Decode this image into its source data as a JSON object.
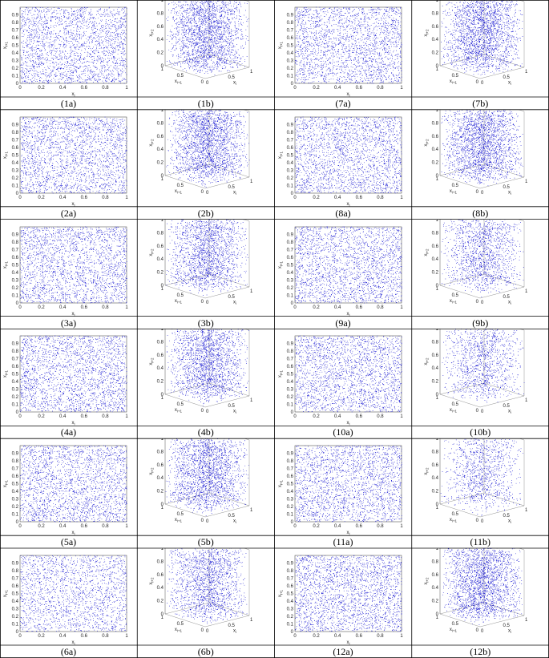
{
  "axis_labels": {
    "x2d": "x",
    "x2d_sub": "i",
    "y2d": "x",
    "y2d_sub": "i+1",
    "x3d": "x",
    "x3d_sub": "i",
    "y3d": "x",
    "y3d_sub": "i+1",
    "z3d": "x",
    "z3d_sub": "i+2"
  },
  "ticks_2d_x": [
    "0",
    "0.2",
    "0.4",
    "0.6",
    "0.8",
    "1"
  ],
  "ticks_2d_y": [
    "0",
    "0.1",
    "0.2",
    "0.3",
    "0.4",
    "0.5",
    "0.6",
    "0.7",
    "0.8",
    "0.9"
  ],
  "ticks_3d_z": [
    "0",
    "0.2",
    "0.4",
    "0.6",
    "0.8",
    "1"
  ],
  "ticks_3d_y": [
    "1",
    "0.5",
    "0"
  ],
  "ticks_3d_x": [
    "0",
    "0.5",
    "1"
  ],
  "point_color": "#0000cc",
  "panels": [
    {
      "caption": "(1a)",
      "type": "scatter2d"
    },
    {
      "caption": "(1b)",
      "type": "scatter3d"
    },
    {
      "caption": "(7a)",
      "type": "scatter2d"
    },
    {
      "caption": "(7b)",
      "type": "scatter3d"
    },
    {
      "caption": "(2a)",
      "type": "scatter2d"
    },
    {
      "caption": "(2b)",
      "type": "scatter3d"
    },
    {
      "caption": "(8a)",
      "type": "scatter2d"
    },
    {
      "caption": "(8b)",
      "type": "scatter3d"
    },
    {
      "caption": "(3a)",
      "type": "scatter2d"
    },
    {
      "caption": "(3b)",
      "type": "scatter3d"
    },
    {
      "caption": "(9a)",
      "type": "scatter2d"
    },
    {
      "caption": "(9b)",
      "type": "scatter3d"
    },
    {
      "caption": "(4a)",
      "type": "scatter2d"
    },
    {
      "caption": "(4b)",
      "type": "scatter3d"
    },
    {
      "caption": "(10a)",
      "type": "scatter2d"
    },
    {
      "caption": "(10b)",
      "type": "scatter3d"
    },
    {
      "caption": "(5a)",
      "type": "scatter2d"
    },
    {
      "caption": "(5b)",
      "type": "scatter3d"
    },
    {
      "caption": "(11a)",
      "type": "scatter2d"
    },
    {
      "caption": "(11b)",
      "type": "scatter3d"
    },
    {
      "caption": "(6a)",
      "type": "scatter2d"
    },
    {
      "caption": "(6b)",
      "type": "scatter3d"
    },
    {
      "caption": "(12a)",
      "type": "scatter2d"
    },
    {
      "caption": "(12b)",
      "type": "scatter3d"
    }
  ],
  "chart_data": {
    "type": "scatter",
    "description_values": "Each panel plots a chaotic sequence: 2D panels show (x_i, x_i+1) pairs uniformly filling [0,1]x[0,1]; 3D panels show (x_i, x_i+1, x_i+2) filling the unit cube.",
    "xlim": [
      0,
      1
    ],
    "ylim": [
      0,
      1
    ],
    "zlim": [
      0,
      1
    ]
  }
}
